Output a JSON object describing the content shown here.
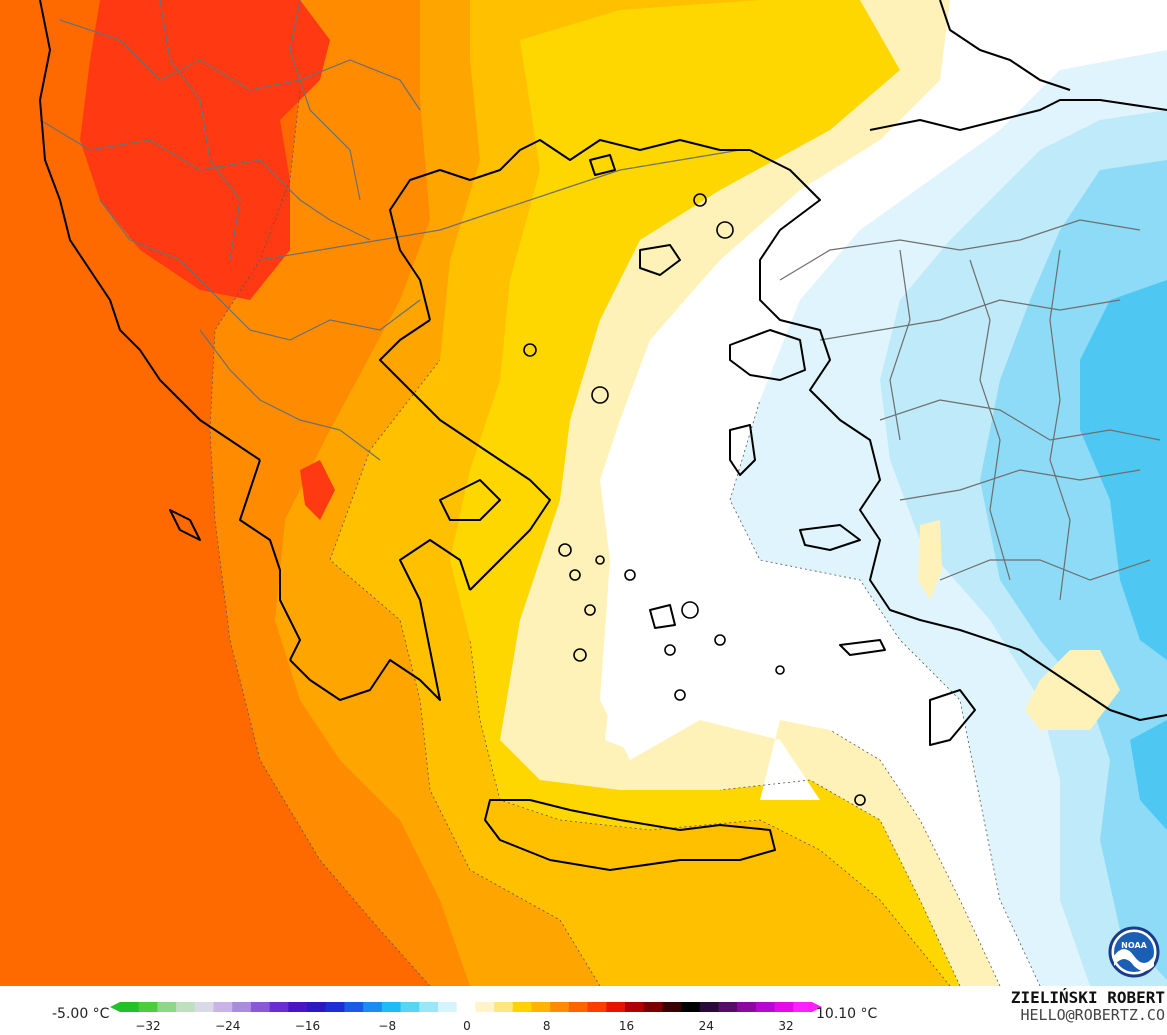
{
  "legend": {
    "min_value": "-5.00 °C",
    "max_value": "10.10 °C",
    "ticks": [
      "−32",
      "−24",
      "−16",
      "−8",
      "0",
      "8",
      "16",
      "24",
      "32"
    ],
    "colors": [
      "#22c02a",
      "#4fcc3e",
      "#8ad88a",
      "#bfe0bf",
      "#d9d9e8",
      "#c8b4e6",
      "#a98ce0",
      "#8a5ad6",
      "#6a2ed0",
      "#4a14c4",
      "#2a18c0",
      "#1c2ed8",
      "#1c5ae6",
      "#1c8cf0",
      "#1cbcf4",
      "#5ad4f6",
      "#9ae6fa",
      "#d6f4fc",
      "#ffffff",
      "#fff5c8",
      "#ffe680",
      "#ffd200",
      "#ffb400",
      "#ff8c00",
      "#ff6400",
      "#ff3c00",
      "#e81400",
      "#b00000",
      "#7a0000",
      "#3a0000",
      "#000000",
      "#2a0a3a",
      "#5a0a6a",
      "#8a0aa0",
      "#b40ad0",
      "#e60ae8",
      "#ff20ff"
    ]
  },
  "credit": {
    "name": "ZIELIŃSKI ROBERT",
    "email": "HELLO@ROBERTZ.CO"
  },
  "logo": {
    "icon": "noaa-logo",
    "text": "NOAA"
  },
  "map_colors": {
    "deep_orange": "#ff6a00",
    "red": "#ff3a12",
    "orange": "#ff8c00",
    "amber": "#ffa500",
    "yellow_orange": "#ffc000",
    "yellow": "#ffd700",
    "pale_yellow": "#fff2b8",
    "white": "#ffffff",
    "pale_blue": "#dff4fd",
    "light_blue": "#bfeaf9",
    "sky_blue": "#8ddbf6",
    "cyan": "#4ec8f2",
    "coast": "#000000",
    "border": "#6e6e6e"
  }
}
